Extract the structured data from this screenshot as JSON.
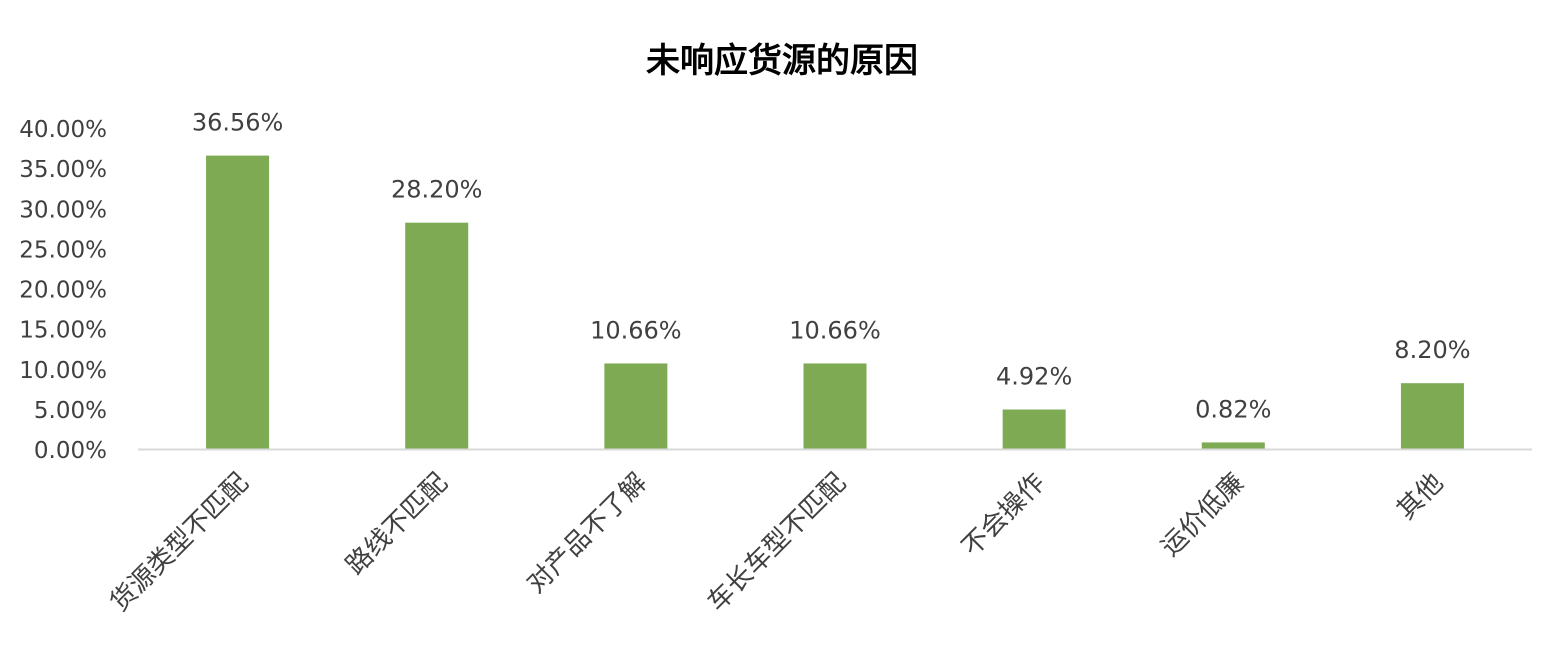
{
  "chart_data": {
    "type": "bar",
    "title": "未响应货源的原因",
    "xlabel": "",
    "ylabel": "",
    "categories": [
      "货源类型不匹配",
      "路线不匹配",
      "对产品不了解",
      "车长车型不匹配",
      "不会操作",
      "运价低廉",
      "其他"
    ],
    "values": [
      36.56,
      28.2,
      10.66,
      10.66,
      4.92,
      0.82,
      8.2
    ],
    "data_labels": [
      "36.56%",
      "28.20%",
      "10.66%",
      "10.66%",
      "4.92%",
      "0.82%",
      "8.20%"
    ],
    "ylim": [
      0,
      40
    ],
    "y_ticks": [
      "0.00%",
      "5.00%",
      "10.00%",
      "15.00%",
      "20.00%",
      "25.00%",
      "30.00%",
      "35.00%",
      "40.00%"
    ],
    "grid": false,
    "legend": "none",
    "colors": {
      "bar": "#7daa52",
      "axis": "#d9d9d9",
      "text": "#404040"
    }
  }
}
